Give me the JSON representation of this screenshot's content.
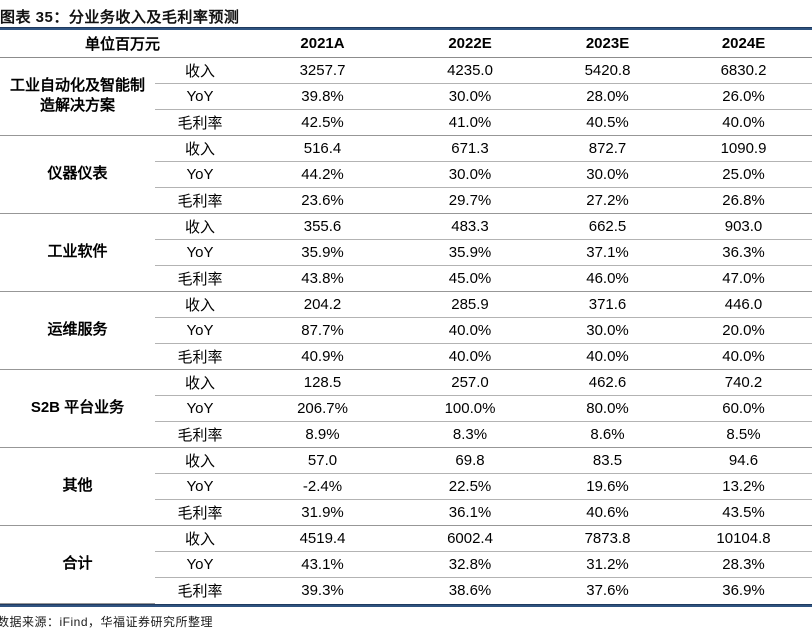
{
  "title": "图表 35：分业务收入及毛利率预测",
  "footer": "数据来源：iFind，华福证券研究所整理",
  "colors": {
    "rule_navy": "#2f5380",
    "line_inner": "#b3b3b3",
    "line_group": "#979797"
  },
  "table": {
    "unit_label": "单位百万元",
    "year_headers": [
      "2021A",
      "2022E",
      "2023E",
      "2024E"
    ],
    "groups": [
      {
        "name": "工业自动化及智能制造解决方案",
        "rows": [
          {
            "metric": "收入",
            "values": [
              "3257.7",
              "4235.0",
              "5420.8",
              "6830.2"
            ]
          },
          {
            "metric": "YoY",
            "values": [
              "39.8%",
              "30.0%",
              "28.0%",
              "26.0%"
            ]
          },
          {
            "metric": "毛利率",
            "values": [
              "42.5%",
              "41.0%",
              "40.5%",
              "40.0%"
            ]
          }
        ]
      },
      {
        "name": "仪器仪表",
        "rows": [
          {
            "metric": "收入",
            "values": [
              "516.4",
              "671.3",
              "872.7",
              "1090.9"
            ]
          },
          {
            "metric": "YoY",
            "values": [
              "44.2%",
              "30.0%",
              "30.0%",
              "25.0%"
            ]
          },
          {
            "metric": "毛利率",
            "values": [
              "23.6%",
              "29.7%",
              "27.2%",
              "26.8%"
            ]
          }
        ]
      },
      {
        "name": "工业软件",
        "rows": [
          {
            "metric": "收入",
            "values": [
              "355.6",
              "483.3",
              "662.5",
              "903.0"
            ]
          },
          {
            "metric": "YoY",
            "values": [
              "35.9%",
              "35.9%",
              "37.1%",
              "36.3%"
            ]
          },
          {
            "metric": "毛利率",
            "values": [
              "43.8%",
              "45.0%",
              "46.0%",
              "47.0%"
            ]
          }
        ]
      },
      {
        "name": "运维服务",
        "rows": [
          {
            "metric": "收入",
            "values": [
              "204.2",
              "285.9",
              "371.6",
              "446.0"
            ]
          },
          {
            "metric": "YoY",
            "values": [
              "87.7%",
              "40.0%",
              "30.0%",
              "20.0%"
            ]
          },
          {
            "metric": "毛利率",
            "values": [
              "40.9%",
              "40.0%",
              "40.0%",
              "40.0%"
            ]
          }
        ]
      },
      {
        "name": "S2B 平台业务",
        "rows": [
          {
            "metric": "收入",
            "values": [
              "128.5",
              "257.0",
              "462.6",
              "740.2"
            ]
          },
          {
            "metric": "YoY",
            "values": [
              "206.7%",
              "100.0%",
              "80.0%",
              "60.0%"
            ]
          },
          {
            "metric": "毛利率",
            "values": [
              "8.9%",
              "8.3%",
              "8.6%",
              "8.5%"
            ]
          }
        ]
      },
      {
        "name": "其他",
        "rows": [
          {
            "metric": "收入",
            "values": [
              "57.0",
              "69.8",
              "83.5",
              "94.6"
            ]
          },
          {
            "metric": "YoY",
            "values": [
              "-2.4%",
              "22.5%",
              "19.6%",
              "13.2%"
            ]
          },
          {
            "metric": "毛利率",
            "values": [
              "31.9%",
              "36.1%",
              "40.6%",
              "43.5%"
            ]
          }
        ]
      },
      {
        "name": "合计",
        "rows": [
          {
            "metric": "收入",
            "values": [
              "4519.4",
              "6002.4",
              "7873.8",
              "10104.8"
            ]
          },
          {
            "metric": "YoY",
            "values": [
              "43.1%",
              "32.8%",
              "31.2%",
              "28.3%"
            ]
          },
          {
            "metric": "毛利率",
            "values": [
              "39.3%",
              "38.6%",
              "37.6%",
              "36.9%"
            ]
          }
        ]
      }
    ]
  }
}
